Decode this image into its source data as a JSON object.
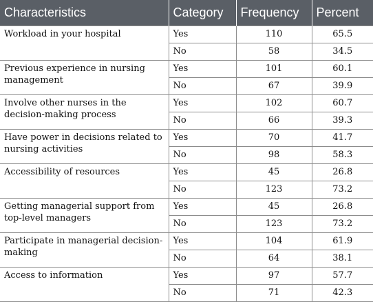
{
  "table": {
    "headers": [
      "Characteristics",
      "Category",
      "Frequency",
      "Percent"
    ],
    "groups": [
      {
        "characteristic": "Workload in your hospital",
        "rows": [
          {
            "category": "Yes",
            "frequency": "110",
            "percent": "65.5"
          },
          {
            "category": "No",
            "frequency": "58",
            "percent": "34.5"
          }
        ]
      },
      {
        "characteristic": "Previous experience in nursing management",
        "rows": [
          {
            "category": "Yes",
            "frequency": "101",
            "percent": "60.1"
          },
          {
            "category": "No",
            "frequency": "67",
            "percent": "39.9"
          }
        ]
      },
      {
        "characteristic": "Involve other nurses in the decision-making process",
        "rows": [
          {
            "category": "Yes",
            "frequency": "102",
            "percent": "60.7"
          },
          {
            "category": "No",
            "frequency": "66",
            "percent": "39.3"
          }
        ]
      },
      {
        "characteristic": "Have power in decisions related to nursing activities",
        "rows": [
          {
            "category": "Yes",
            "frequency": "70",
            "percent": "41.7"
          },
          {
            "category": "No",
            "frequency": "98",
            "percent": "58.3"
          }
        ]
      },
      {
        "characteristic": "Accessibility of resources",
        "rows": [
          {
            "category": "Yes",
            "frequency": "45",
            "percent": "26.8"
          },
          {
            "category": "No",
            "frequency": "123",
            "percent": "73.2"
          }
        ]
      },
      {
        "characteristic": "Getting managerial support from top-level managers",
        "rows": [
          {
            "category": "Yes",
            "frequency": "45",
            "percent": "26.8"
          },
          {
            "category": "No",
            "frequency": "123",
            "percent": "73.2"
          }
        ]
      },
      {
        "characteristic": "Participate in managerial decision-making",
        "rows": [
          {
            "category": "Yes",
            "frequency": "104",
            "percent": "61.9"
          },
          {
            "category": "No",
            "frequency": "64",
            "percent": "38.1"
          }
        ]
      },
      {
        "characteristic": "Access to information",
        "rows": [
          {
            "category": "Yes",
            "frequency": "97",
            "percent": "57.7"
          },
          {
            "category": "No",
            "frequency": "71",
            "percent": "42.3"
          }
        ]
      }
    ]
  },
  "colors": {
    "header_bg": "#5a5f66",
    "header_text": "#ffffff",
    "border": "#8c8c8c"
  }
}
